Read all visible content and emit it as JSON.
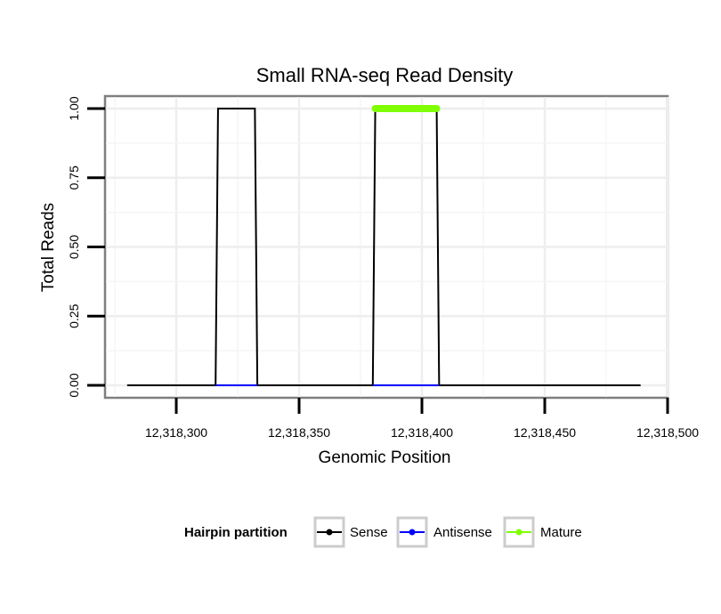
{
  "chart_data": {
    "type": "line",
    "title": "Small RNA-seq Read Density",
    "xlabel": "Genomic Position",
    "ylabel": "Total Reads",
    "xlim": [
      12318271,
      12318500
    ],
    "ylim": [
      -0.045,
      1.045
    ],
    "x_ticks": [
      12318300,
      12318350,
      12318400,
      12318450,
      12318500
    ],
    "x_tick_labels": [
      "12,318,300",
      "12,318,350",
      "12,318,400",
      "12,318,450",
      "12,318,500"
    ],
    "y_ticks": [
      0,
      0.25,
      0.5,
      0.75,
      1.0
    ],
    "y_tick_labels": [
      "0.00",
      "0.25",
      "0.50",
      "0.75",
      "1.00"
    ],
    "grid": true,
    "legend_position": "bottom",
    "legend_title": "Hairpin partition",
    "series": [
      {
        "name": "Sense",
        "color": "#000000",
        "points": [
          [
            12318280,
            0
          ],
          [
            12318316,
            0
          ],
          [
            12318317,
            1
          ],
          [
            12318332,
            1
          ],
          [
            12318333,
            0
          ],
          [
            12318380,
            0
          ],
          [
            12318381,
            1
          ],
          [
            12318406,
            1
          ],
          [
            12318407,
            0
          ],
          [
            12318489,
            0
          ]
        ]
      },
      {
        "name": "Antisense",
        "color": "#0000ff",
        "points": [
          [
            12318316,
            0
          ],
          [
            12318333,
            0
          ],
          [
            12318380,
            0
          ],
          [
            12318407,
            0
          ]
        ],
        "segments": [
          [
            12318316,
            12318333
          ],
          [
            12318380,
            12318407
          ]
        ]
      },
      {
        "name": "Mature",
        "color": "#7fff00",
        "points": [
          [
            12318381,
            1
          ],
          [
            12318406,
            1
          ]
        ]
      }
    ]
  }
}
